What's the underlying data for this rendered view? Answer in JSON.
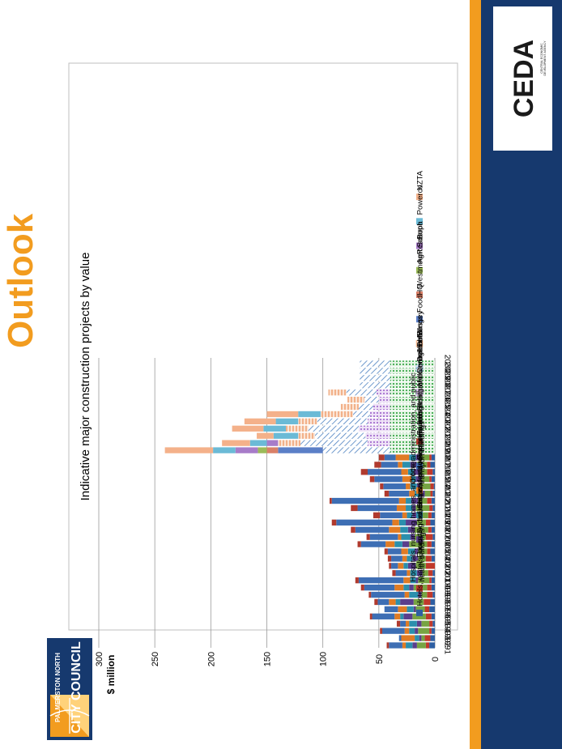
{
  "slide": {
    "title": "Outlook",
    "colors": {
      "title": "#f29c1f",
      "navy": "#16396e",
      "orange": "#f29c1f"
    }
  },
  "logos": {
    "ceda": {
      "name": "CEDA",
      "line1": "CENTRAL ECONOMIC",
      "line2": "DEVELOPMENT AGENCY"
    },
    "council": {
      "line1": "PALMERSTON NORTH",
      "line2": "CITY COUNCIL"
    }
  },
  "chart_data": {
    "type": "bar",
    "stacked": true,
    "orientation": "vertical",
    "title": "Indicative major construction projects by value",
    "ylabel": "$ million",
    "xlabel": "",
    "ylim": [
      0,
      300
    ],
    "yticks": [
      0,
      50,
      100,
      150,
      200,
      250,
      300
    ],
    "grid": true,
    "legend_position": "right",
    "categories": [
      "1991",
      "1992",
      "1993",
      "1994",
      "1995",
      "1996",
      "1997",
      "1998",
      "1999",
      "2000",
      "2001",
      "2002",
      "2003",
      "2004",
      "2005",
      "2006",
      "2007",
      "2008",
      "2009",
      "2010",
      "2011",
      "2012",
      "2013",
      "2014",
      "2015",
      "2016",
      "2017",
      "2018",
      "2019",
      "2020",
      "2021",
      "2022",
      "2023",
      "2024",
      "2025",
      "2026",
      "2027",
      "2028",
      "2029",
      "2030"
    ],
    "series": [
      {
        "name": "Hotels, motels, boarding houses, and prisons",
        "color": "#2e5fa3",
        "values": [
          5,
          4,
          3,
          2,
          3,
          5,
          4,
          2,
          3,
          3,
          2,
          0,
          3,
          4,
          3,
          2,
          3,
          4,
          3,
          2,
          3,
          2,
          1,
          3,
          2,
          4,
          3,
          0,
          0,
          0,
          0,
          0,
          0,
          0,
          0,
          0,
          0,
          0,
          0,
          0
        ]
      },
      {
        "name": "Hospitals, nursing homes, and other health buildings",
        "color": "#c0392b",
        "values": [
          3,
          5,
          2,
          3,
          5,
          4,
          6,
          5,
          4,
          2,
          4,
          8,
          5,
          3,
          4,
          6,
          3,
          4,
          3,
          3,
          4,
          2,
          3,
          2,
          5,
          3,
          2,
          0,
          0,
          0,
          0,
          0,
          0,
          0,
          0,
          0,
          0,
          0,
          0,
          0
        ]
      },
      {
        "name": "Education buildings",
        "color": "#77a443",
        "values": [
          8,
          3,
          10,
          7,
          12,
          8,
          9,
          5,
          12,
          10,
          5,
          9,
          7,
          8,
          16,
          10,
          12,
          8,
          10,
          12,
          8,
          5,
          9,
          7,
          6,
          9,
          8,
          0,
          0,
          0,
          0,
          0,
          0,
          0,
          0,
          0,
          0,
          0,
          0,
          0
        ]
      },
      {
        "name": "Social, cultural, and religious buildings",
        "color": "#5a3e8c",
        "values": [
          4,
          2,
          3,
          4,
          8,
          2,
          12,
          3,
          4,
          2,
          5,
          7,
          5,
          3,
          6,
          4,
          6,
          10,
          4,
          3,
          6,
          4,
          3,
          5,
          6,
          6,
          4,
          0,
          0,
          0,
          0,
          0,
          0,
          0,
          0,
          0,
          0,
          0,
          0,
          0
        ]
      },
      {
        "name": "Shops, restaurants, and bars",
        "color": "#2b8fad",
        "values": [
          6,
          4,
          5,
          7,
          3,
          6,
          4,
          8,
          5,
          5,
          6,
          4,
          5,
          6,
          7,
          8,
          7,
          6,
          5,
          6,
          5,
          5,
          6,
          4,
          5,
          7,
          6,
          0,
          0,
          0,
          0,
          0,
          0,
          0,
          0,
          0,
          0,
          0,
          0,
          0
        ]
      },
      {
        "name": "Office, administration, and public transport buildings",
        "color": "#e07b24",
        "values": [
          3,
          12,
          4,
          3,
          5,
          8,
          6,
          4,
          8,
          6,
          3,
          5,
          4,
          6,
          8,
          3,
          10,
          6,
          4,
          8,
          6,
          5,
          4,
          8,
          6,
          4,
          12,
          0,
          0,
          0,
          0,
          0,
          0,
          0,
          0,
          0,
          0,
          0,
          0,
          0
        ]
      },
      {
        "name": "Factories, industrial, and storage buildings",
        "color": "#3d6eb4",
        "values": [
          12,
          2,
          20,
          5,
          20,
          12,
          10,
          30,
          27,
          40,
          10,
          6,
          10,
          12,
          22,
          25,
          30,
          50,
          20,
          35,
          60,
          18,
          20,
          25,
          30,
          15,
          10,
          0,
          0,
          0,
          0,
          0,
          0,
          0,
          0,
          0,
          0,
          0,
          0,
          0
        ]
      },
      {
        "name": "Farm buildings",
        "color": "#b03a2e",
        "values": [
          2,
          0,
          2,
          3,
          2,
          0,
          3,
          2,
          3,
          3,
          3,
          2,
          3,
          3,
          3,
          3,
          4,
          4,
          6,
          6,
          2,
          4,
          3,
          4,
          6,
          6,
          5,
          0,
          0,
          0,
          0,
          0,
          0,
          0,
          0,
          0,
          0,
          0,
          0,
          0
        ]
      },
      {
        "name": "Residual non-residential",
        "color": "#4caf50",
        "pattern": "dots",
        "values": [
          0,
          0,
          0,
          0,
          0,
          0,
          0,
          0,
          0,
          0,
          0,
          0,
          0,
          0,
          0,
          0,
          0,
          0,
          0,
          0,
          0,
          0,
          0,
          0,
          0,
          0,
          0,
          40,
          40,
          40,
          40,
          40,
          40,
          40,
          40,
          40,
          40,
          40,
          40,
          40
        ]
      },
      {
        "name": "MidCentral DHB",
        "color": "#b98ad6",
        "pattern": "dots",
        "values": [
          0,
          0,
          0,
          0,
          0,
          0,
          0,
          0,
          0,
          0,
          0,
          0,
          0,
          0,
          0,
          0,
          0,
          0,
          0,
          0,
          0,
          0,
          0,
          0,
          0,
          0,
          0,
          0,
          20,
          22,
          28,
          20,
          18,
          15,
          10,
          12,
          0,
          0,
          0,
          0
        ]
      },
      {
        "name": "Defence",
        "color": "#5b8fc7",
        "pattern": "hatch",
        "values": [
          0,
          0,
          0,
          0,
          0,
          0,
          0,
          0,
          0,
          0,
          0,
          0,
          0,
          0,
          0,
          0,
          0,
          0,
          0,
          0,
          0,
          0,
          0,
          0,
          0,
          0,
          0,
          60,
          60,
          45,
          45,
          45,
          15,
          13,
          13,
          27,
          27,
          27,
          27,
          27
        ]
      },
      {
        "name": "Massey",
        "color": "#f4b183",
        "pattern": "vlines",
        "values": [
          0,
          0,
          0,
          0,
          0,
          0,
          0,
          0,
          0,
          0,
          0,
          0,
          0,
          0,
          0,
          0,
          0,
          0,
          0,
          0,
          0,
          0,
          0,
          0,
          0,
          0,
          0,
          0,
          20,
          15,
          20,
          17,
          29,
          16,
          15,
          16,
          0,
          0,
          0,
          0
        ]
      },
      {
        "name": "FoodHQ",
        "color": "#5b7fc7",
        "values": [
          0,
          0,
          0,
          0,
          0,
          0,
          0,
          0,
          0,
          0,
          0,
          0,
          0,
          0,
          0,
          0,
          0,
          0,
          0,
          0,
          0,
          0,
          0,
          0,
          0,
          0,
          0,
          40,
          0,
          0,
          0,
          0,
          0,
          0,
          0,
          0,
          0,
          0,
          0,
          0
        ]
      },
      {
        "name": "Westmount School",
        "color": "#d98068",
        "values": [
          0,
          0,
          0,
          0,
          0,
          0,
          0,
          0,
          0,
          0,
          0,
          0,
          0,
          0,
          0,
          0,
          0,
          0,
          0,
          0,
          0,
          0,
          0,
          0,
          0,
          0,
          0,
          10,
          0,
          0,
          0,
          0,
          0,
          0,
          0,
          0,
          0,
          0,
          0,
          0
        ]
      },
      {
        "name": "AgResearch",
        "color": "#9bbb59",
        "values": [
          0,
          0,
          0,
          0,
          0,
          0,
          0,
          0,
          0,
          0,
          0,
          0,
          0,
          0,
          0,
          0,
          0,
          0,
          0,
          0,
          0,
          0,
          0,
          0,
          0,
          0,
          0,
          8,
          0,
          0,
          0,
          0,
          0,
          0,
          0,
          0,
          0,
          0,
          0,
          0
        ]
      },
      {
        "name": "Bupa",
        "color": "#a77cc9",
        "values": [
          0,
          0,
          0,
          0,
          0,
          0,
          0,
          0,
          0,
          0,
          0,
          0,
          0,
          0,
          0,
          0,
          0,
          0,
          0,
          0,
          0,
          0,
          0,
          0,
          0,
          0,
          0,
          20,
          10,
          0,
          0,
          0,
          0,
          0,
          0,
          0,
          0,
          0,
          0,
          0
        ]
      },
      {
        "name": "Powerco",
        "color": "#6bbad6",
        "values": [
          0,
          0,
          0,
          0,
          0,
          0,
          0,
          0,
          0,
          0,
          0,
          0,
          0,
          0,
          0,
          0,
          0,
          0,
          0,
          0,
          0,
          0,
          0,
          0,
          0,
          0,
          0,
          20,
          15,
          22,
          20,
          20,
          20,
          0,
          0,
          0,
          0,
          0,
          0,
          0
        ]
      },
      {
        "name": "NZTA",
        "color": "#f4b18a",
        "values": [
          0,
          0,
          0,
          0,
          0,
          0,
          0,
          0,
          0,
          0,
          0,
          0,
          0,
          0,
          0,
          0,
          0,
          0,
          0,
          0,
          0,
          0,
          0,
          0,
          0,
          0,
          0,
          43,
          25,
          15,
          28,
          28,
          28,
          0,
          0,
          0,
          0,
          0,
          0,
          0
        ]
      }
    ]
  }
}
